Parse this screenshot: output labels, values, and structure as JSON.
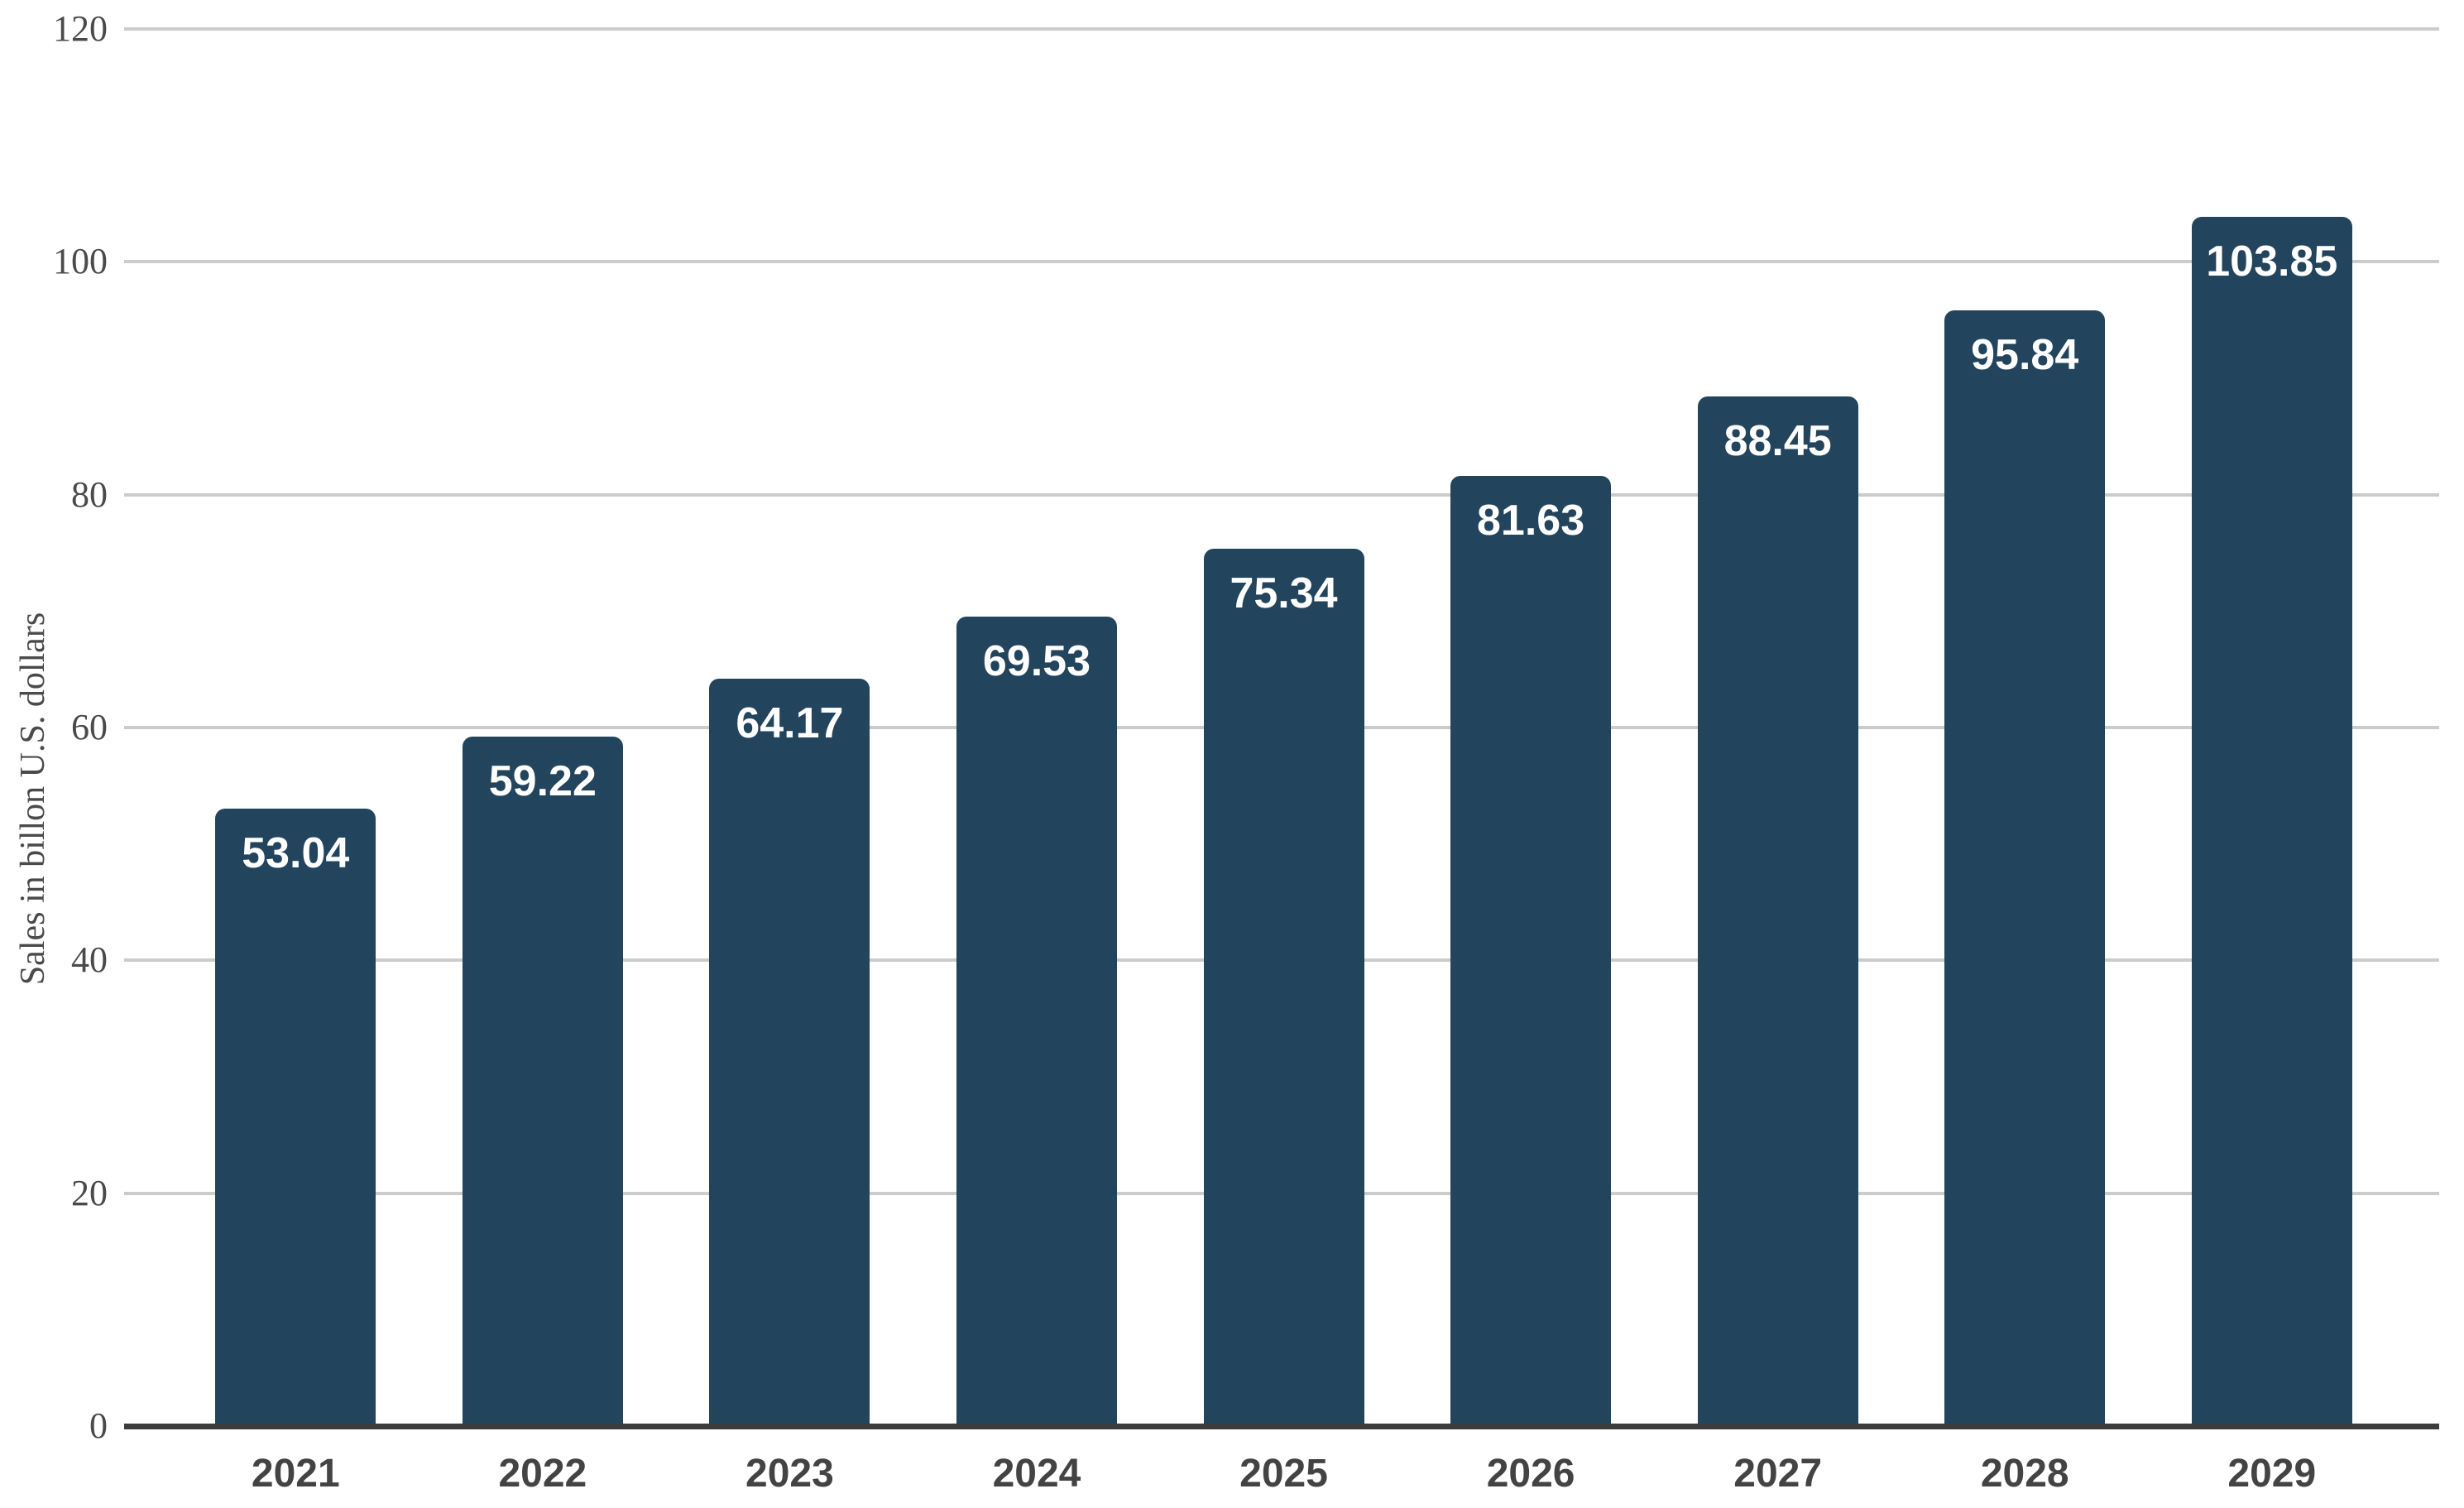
{
  "chart_data": {
    "type": "bar",
    "categories": [
      "2021",
      "2022",
      "2023",
      "2024",
      "2025",
      "2026",
      "2027",
      "2028",
      "2029"
    ],
    "values": [
      53.04,
      59.22,
      64.17,
      69.53,
      75.34,
      81.63,
      88.45,
      95.84,
      103.85
    ],
    "value_labels": [
      "53.04",
      "59.22",
      "64.17",
      "69.53",
      "75.34",
      "81.63",
      "88.45",
      "95.84",
      "103.85"
    ],
    "title": "",
    "xlabel": "",
    "ylabel": "Sales in billon U.S. dollars",
    "ylim": [
      0,
      120
    ],
    "ytick_values": [
      0,
      20,
      40,
      60,
      80,
      100,
      120
    ],
    "ytick_labels": [
      "0",
      "20",
      "40",
      "60",
      "80",
      "100",
      "120"
    ],
    "grid": true,
    "legend_position": "none",
    "colors": {
      "bar": "#22445c",
      "value_label": "#ffffff",
      "gridline": "#cccccc",
      "axis_line": "#3c3c3c",
      "tick_label": "#4a4a4a",
      "category_label": "#434343",
      "background": "#ffffff"
    }
  }
}
